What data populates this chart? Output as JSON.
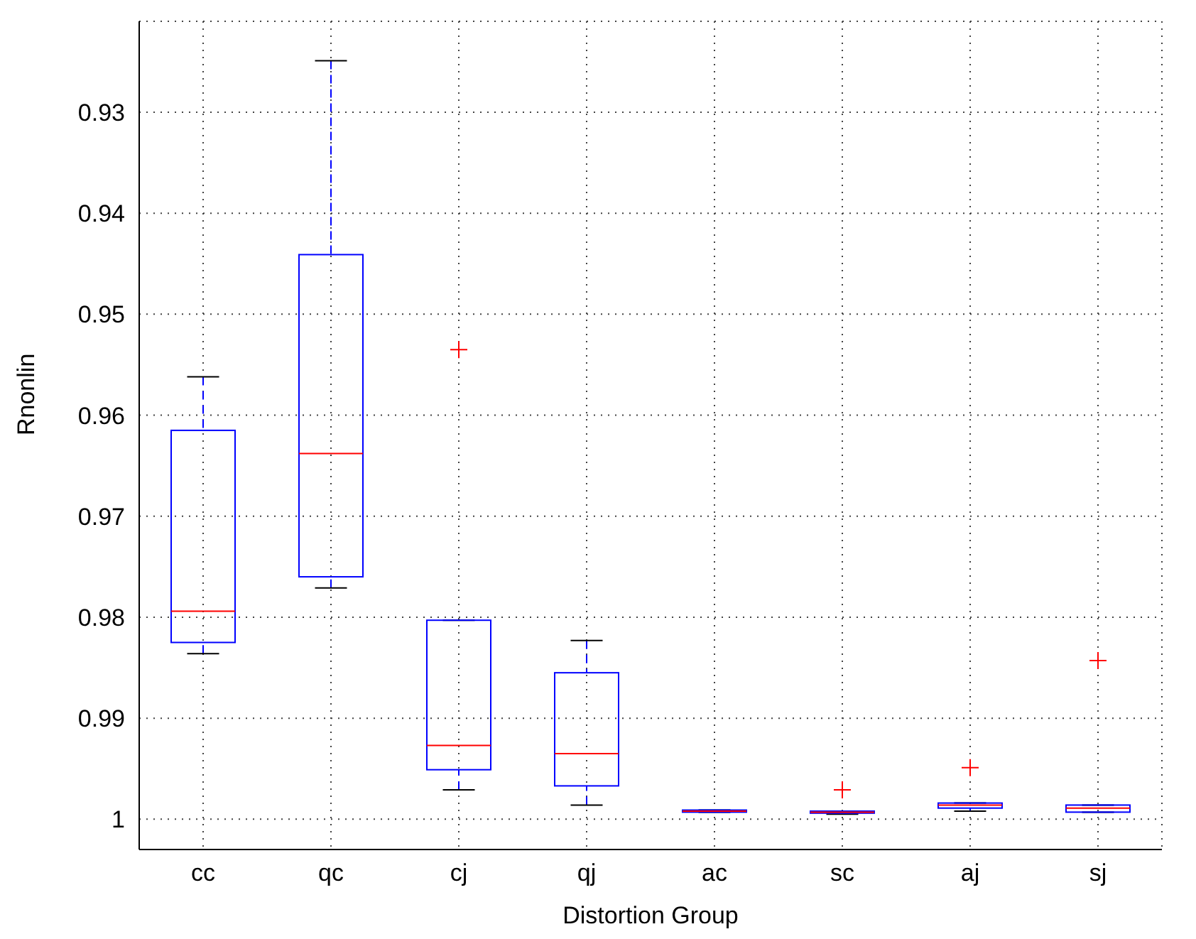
{
  "chart_data": {
    "type": "box",
    "xlabel": "Distortion Group",
    "ylabel": "Rnonlin",
    "categories": [
      "cc",
      "qc",
      "cj",
      "qj",
      "ac",
      "sc",
      "aj",
      "sj"
    ],
    "ylim": [
      1.003,
      0.921
    ],
    "yticks": [
      0.93,
      0.94,
      0.95,
      0.96,
      0.97,
      0.98,
      0.99,
      1
    ],
    "grid": true,
    "boxes": [
      {
        "low": 0.9836,
        "q1": 0.9825,
        "median": 0.9794,
        "q3": 0.9615,
        "high": 0.9562
      },
      {
        "low": 0.9771,
        "q1": 0.976,
        "median": 0.9638,
        "q3": 0.9441,
        "high": 0.9249
      },
      {
        "low": 0.9971,
        "q1": 0.9951,
        "median": 0.9927,
        "q3": 0.9803,
        "high": 0.9803,
        "outliers": [
          0.9535
        ]
      },
      {
        "low": 0.9986,
        "q1": 0.9967,
        "median": 0.9935,
        "q3": 0.9855,
        "high": 0.9823
      },
      {
        "low": 0.9993,
        "q1": 0.9993,
        "median": 0.9992,
        "q3": 0.9991,
        "high": 0.9991
      },
      {
        "low": 0.9995,
        "q1": 0.9994,
        "median": 0.9993,
        "q3": 0.9992,
        "high": 0.9992,
        "outliers": [
          0.9971
        ]
      },
      {
        "low": 0.9992,
        "q1": 0.9989,
        "median": 0.9986,
        "q3": 0.9984,
        "high": 0.9984,
        "outliers": [
          0.9949
        ]
      },
      {
        "low": 0.9993,
        "q1": 0.9993,
        "median": 0.9989,
        "q3": 0.9986,
        "high": 0.9986,
        "outliers": [
          0.9843
        ]
      }
    ]
  }
}
